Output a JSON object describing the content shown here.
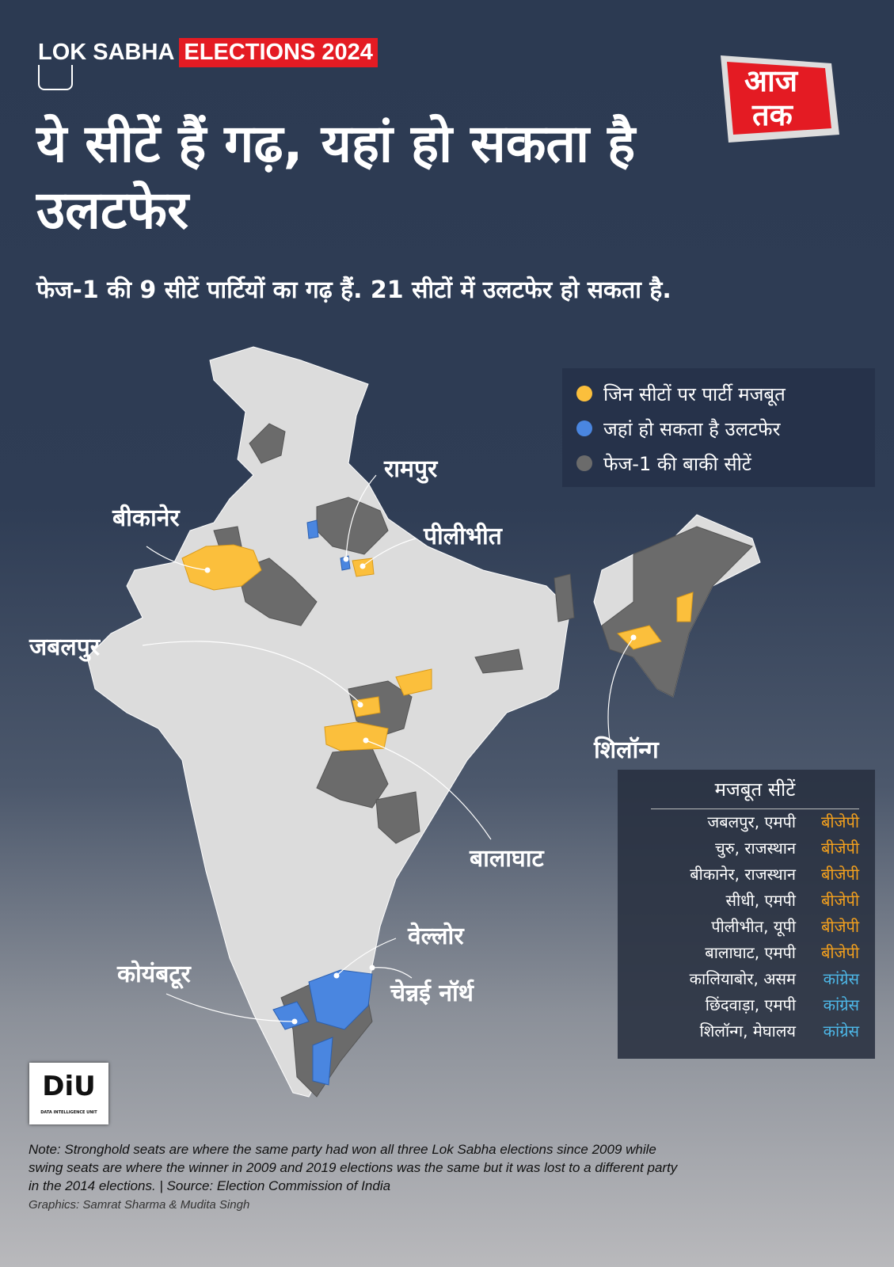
{
  "brand": {
    "part1": "LOK SABHA",
    "part2": "ELECTIONS 2024",
    "logo_text": "आज तक"
  },
  "colors": {
    "stronghold": "#fbbf3c",
    "swing": "#4a86e0",
    "other": "#6b6b6b",
    "map_land": "#dcdcdc",
    "bjp": "#f5a11d",
    "congress": "#4db8e8",
    "brand_red": "#e41b23"
  },
  "title": "ये सीटें हैं गढ़, यहां हो सकता है उलटफेर",
  "subtitle": "फेज-1 की 9 सीटें पार्टियों का गढ़ हैं. 21 सीटों में उलटफेर हो सकता है.",
  "legend": [
    {
      "label": "जिन सीटों पर पार्टी मजबूत",
      "color": "#fbbf3c"
    },
    {
      "label": "जहां हो सकता है उलटफेर",
      "color": "#4a86e0"
    },
    {
      "label": "फेज-1 की बाकी सीटें",
      "color": "#6b6b6b"
    }
  ],
  "map_labels": {
    "rampur": "रामपुर",
    "bikaner": "बीकानेर",
    "pilibhit": "पीलीभीत",
    "jabalpur": "जबलपुर",
    "shillong": "शिलॉन्ग",
    "balaghat": "बालाघाट",
    "vellore": "वेल्लोर",
    "coimbatore": "कोयंबटूर",
    "chennai_north": "चेन्नई नॉर्थ"
  },
  "table": {
    "title": "मजबूत सीटें",
    "rows": [
      {
        "seat": "जबलपुर, एमपी",
        "party": "बीजेपी",
        "party_color": "#f5a11d"
      },
      {
        "seat": "चुरु, राजस्थान",
        "party": "बीजेपी",
        "party_color": "#f5a11d"
      },
      {
        "seat": "बीकानेर, राजस्थान",
        "party": "बीजेपी",
        "party_color": "#f5a11d"
      },
      {
        "seat": "सीधी, एमपी",
        "party": "बीजेपी",
        "party_color": "#f5a11d"
      },
      {
        "seat": "पीलीभीत, यूपी",
        "party": "बीजेपी",
        "party_color": "#f5a11d"
      },
      {
        "seat": "बालाघाट, एमपी",
        "party": "बीजेपी",
        "party_color": "#f5a11d"
      },
      {
        "seat": "कालियाबोर, असम",
        "party": "कांग्रेस",
        "party_color": "#4db8e8"
      },
      {
        "seat": "छिंदवाड़ा, एमपी",
        "party": "कांग्रेस",
        "party_color": "#4db8e8"
      },
      {
        "seat": "शिलॉन्ग, मेघालय",
        "party": "कांग्रेस",
        "party_color": "#4db8e8"
      }
    ]
  },
  "diu": {
    "text": "DiU",
    "sub": "DATA INTELLIGENCE UNIT"
  },
  "note": "Note: Stronghold seats are where the same party had won all three Lok Sabha elections since 2009 while swing seats are where the winner in 2009 and 2019 elections was the same but it was lost to a different party in the 2014 elections.  |  Source: Election Commission of India",
  "credit": "Graphics: Samrat Sharma & Mudita Singh"
}
